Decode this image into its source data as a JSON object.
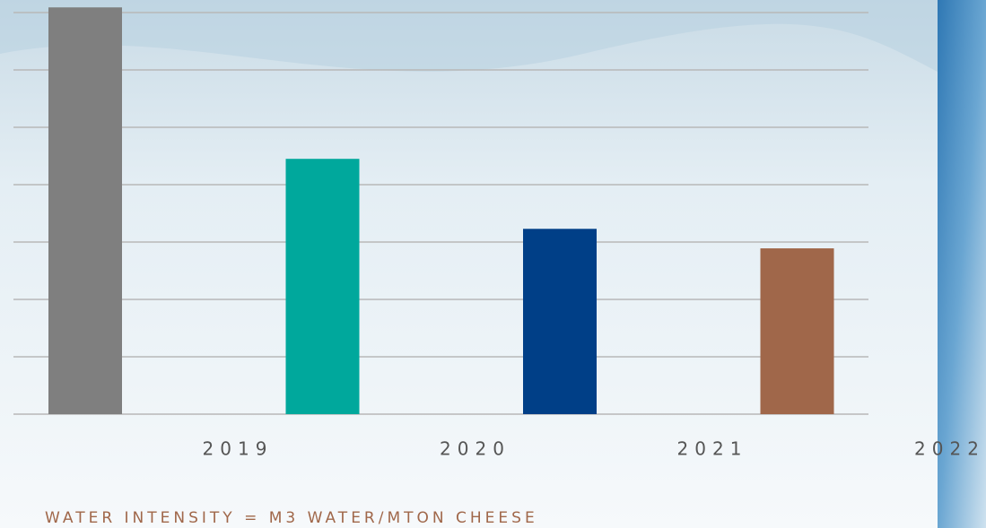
{
  "chart_data": {
    "type": "bar",
    "categories": [
      "2019",
      "2020",
      "2021",
      "2022"
    ],
    "values": [
      7.09,
      4.45,
      3.23,
      2.89
    ],
    "colors": [
      "#7f7f7f",
      "#00a89c",
      "#003f87",
      "#a0674a"
    ],
    "ylim": [
      0,
      7.1
    ],
    "yticks": [
      0,
      1,
      2,
      3,
      4,
      5,
      6,
      7
    ],
    "grid": true,
    "note": "WATER INTENSITY = M3 WATER/MTON CHEESE"
  }
}
